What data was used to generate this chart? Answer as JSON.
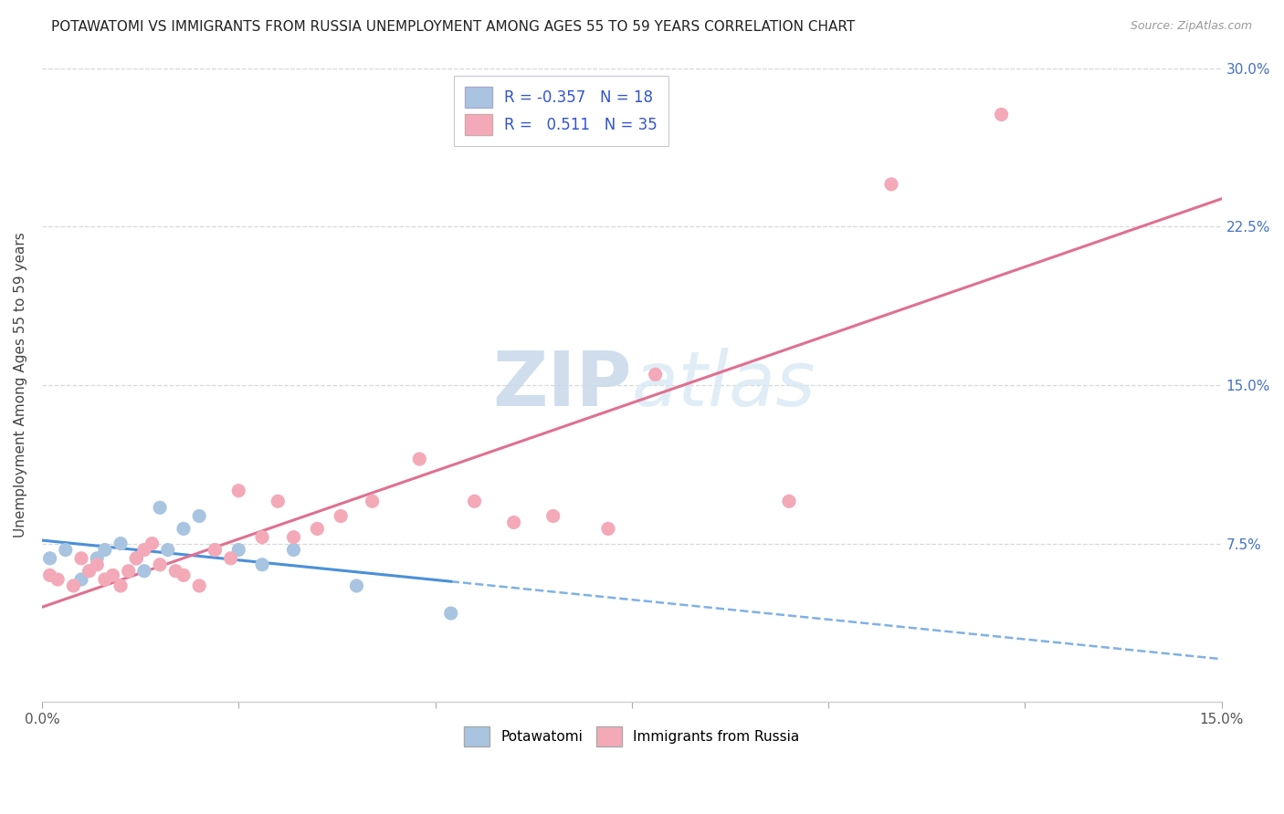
{
  "title": "POTAWATOMI VS IMMIGRANTS FROM RUSSIA UNEMPLOYMENT AMONG AGES 55 TO 59 YEARS CORRELATION CHART",
  "source": "Source: ZipAtlas.com",
  "ylabel": "Unemployment Among Ages 55 to 59 years",
  "xlim": [
    0.0,
    0.15
  ],
  "ylim": [
    0.0,
    0.3
  ],
  "xticks": [
    0.0,
    0.025,
    0.05,
    0.075,
    0.1,
    0.125,
    0.15
  ],
  "xtick_labels": [
    "0.0%",
    "",
    "",
    "",
    "",
    "",
    "15.0%"
  ],
  "yticks": [
    0.0,
    0.075,
    0.15,
    0.225,
    0.3
  ],
  "ytick_labels": [
    "",
    "7.5%",
    "15.0%",
    "22.5%",
    "30.0%"
  ],
  "potawatomi_R": -0.357,
  "potawatomi_N": 18,
  "russia_R": 0.511,
  "russia_N": 35,
  "potawatomi_color": "#a8c4e0",
  "russia_color": "#f4a9b8",
  "potawatomi_line_color": "#4a90d9",
  "russia_line_color": "#e07090",
  "ytick_color": "#4472c4",
  "grid_color": "#d8d8d8",
  "potawatomi_x": [
    0.001,
    0.003,
    0.005,
    0.007,
    0.008,
    0.01,
    0.012,
    0.013,
    0.015,
    0.016,
    0.018,
    0.02,
    0.022,
    0.025,
    0.028,
    0.032,
    0.04,
    0.052
  ],
  "potawatomi_y": [
    0.068,
    0.072,
    0.058,
    0.068,
    0.072,
    0.075,
    0.068,
    0.062,
    0.092,
    0.072,
    0.082,
    0.088,
    0.072,
    0.072,
    0.065,
    0.072,
    0.055,
    0.042
  ],
  "russia_x": [
    0.001,
    0.002,
    0.004,
    0.005,
    0.006,
    0.007,
    0.008,
    0.009,
    0.01,
    0.011,
    0.012,
    0.013,
    0.014,
    0.015,
    0.017,
    0.018,
    0.02,
    0.022,
    0.024,
    0.025,
    0.028,
    0.03,
    0.032,
    0.035,
    0.038,
    0.042,
    0.048,
    0.055,
    0.06,
    0.065,
    0.072,
    0.078,
    0.095,
    0.108,
    0.122
  ],
  "russia_y": [
    0.06,
    0.058,
    0.055,
    0.068,
    0.062,
    0.065,
    0.058,
    0.06,
    0.055,
    0.062,
    0.068,
    0.072,
    0.075,
    0.065,
    0.062,
    0.06,
    0.055,
    0.072,
    0.068,
    0.1,
    0.078,
    0.095,
    0.078,
    0.082,
    0.088,
    0.095,
    0.115,
    0.095,
    0.085,
    0.088,
    0.082,
    0.155,
    0.095,
    0.245,
    0.278
  ],
  "title_fontsize": 11,
  "axis_fontsize": 11,
  "legend_fontsize": 12
}
